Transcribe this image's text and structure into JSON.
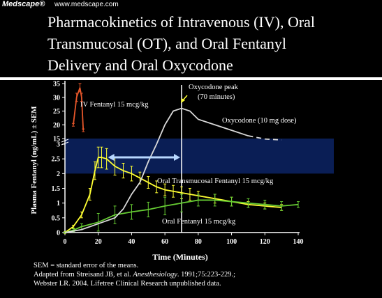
{
  "header": {
    "brand": "Medscape®",
    "url": "www.medscape.com"
  },
  "title_lines": [
    "Pharmacokinetics of Intravenous (IV), Oral",
    "Transmucosal (OT), and Oral Fentanyl",
    "Delivery and  Oral Oxycodone"
  ],
  "footer": {
    "line1": "SEM = standard error of the means.",
    "line2_prefix": "Adapted from Streisand JB, et al. ",
    "line2_journal": "Anesthesiology",
    "line2_suffix": ". 1991;75:223-229.;",
    "line3": "Webster LR. 2004. Lifetree Clinical Research unpublished data."
  },
  "chart_data": {
    "type": "line",
    "title": "",
    "xlabel": "Time (Minutes)",
    "ylabel": "Plasma Fentanyl (ng/mL) ± SEM",
    "xlim": [
      0,
      140
    ],
    "x_ticks": [
      0,
      20,
      40,
      60,
      80,
      100,
      120,
      140
    ],
    "y_ticks_lower": [
      0,
      0.5,
      1,
      1.5,
      2,
      2.5,
      3
    ],
    "y_ticks_upper": [
      15,
      20,
      25,
      30,
      35
    ],
    "axis_break": "broken y-axis: lower segment 0–3 ng/mL, upper segment 15–35 ng/mL",
    "highlight_band": {
      "y_from": 2,
      "y_to": 15,
      "color": "#0a1e55"
    },
    "series": [
      {
        "name": "IV Fentanyl 15 mcg/kg",
        "color": "#e8572a",
        "x": [
          5,
          7,
          9,
          10,
          11
        ],
        "y": [
          20,
          30,
          33.5,
          30,
          18
        ],
        "error": [
          0.5,
          1.5,
          1.5,
          1.5,
          0.5
        ]
      },
      {
        "name": "Oral Transmucosal Fentanyl 15 mcg/kg",
        "color": "#ffff33",
        "x": [
          0,
          5,
          10,
          15,
          18,
          20,
          22,
          25,
          30,
          35,
          40,
          45,
          50,
          55,
          60,
          65,
          70,
          75,
          80,
          90,
          100,
          110,
          120,
          130
        ],
        "y": [
          0,
          0.2,
          0.6,
          1.3,
          2.1,
          2.55,
          2.55,
          2.5,
          2.25,
          2.1,
          2.0,
          1.85,
          1.7,
          1.55,
          1.45,
          1.4,
          1.35,
          1.3,
          1.25,
          1.15,
          1.05,
          0.95,
          0.9,
          0.85
        ],
        "error": [
          0.03,
          0.05,
          0.1,
          0.2,
          0.3,
          0.35,
          0.35,
          0.35,
          0.3,
          0.25,
          0.25,
          0.2,
          0.2,
          0.2,
          0.2,
          0.2,
          0.2,
          0.2,
          0.15,
          0.15,
          0.15,
          0.1,
          0.1,
          0.1
        ]
      },
      {
        "name": "Oral Fentanyl 15 mcg/kg",
        "color": "#66cc33",
        "x": [
          0,
          5,
          10,
          20,
          30,
          40,
          50,
          60,
          70,
          80,
          90,
          100,
          110,
          120,
          130,
          140
        ],
        "y": [
          0,
          0.08,
          0.2,
          0.35,
          0.6,
          0.7,
          0.78,
          0.9,
          1.0,
          1.1,
          1.1,
          1.05,
          1.0,
          0.95,
          0.9,
          0.95
        ],
        "error": [
          0.02,
          0.05,
          0.1,
          0.3,
          0.3,
          0.25,
          0.25,
          0.3,
          0.3,
          0.2,
          0.2,
          0.15,
          0.15,
          0.15,
          0.15,
          0.1
        ]
      },
      {
        "name": "Oxycodone (10 mg dose)",
        "color": "#d9d9d9",
        "x": [
          0,
          10,
          20,
          30,
          35,
          40,
          45,
          50,
          55,
          60,
          65,
          70,
          75,
          80,
          90,
          100,
          110,
          120,
          130
        ],
        "y": [
          0,
          0.1,
          0.3,
          0.5,
          0.8,
          1.3,
          1.7,
          2.4,
          3.0,
          20,
          25,
          26,
          25,
          22,
          20,
          18,
          16,
          14,
          12
        ],
        "dashed_from_x": 110
      }
    ],
    "annotations": [
      {
        "text": "IV Fentanyl 15 mcg/kg"
      },
      {
        "text": "Oxycodone peak"
      },
      {
        "text": "(70 minutes)"
      },
      {
        "text": "Oxycodone (10 mg dose)"
      },
      {
        "text": "Oral Transmucosal Fentanyl 15 mcg/kg"
      },
      {
        "text": "Oral Fentanyl 15 mcg/kg"
      }
    ],
    "marker_line_x": 70,
    "arrow_span_x": [
      25,
      70
    ],
    "arrow_span_y": 2.55
  }
}
